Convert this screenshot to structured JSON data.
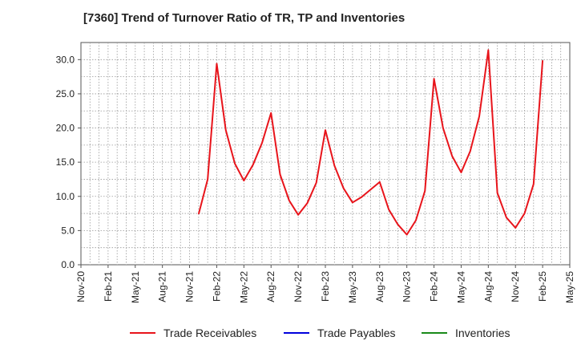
{
  "chart_data": {
    "type": "line",
    "title": "[7360]  Trend of Turnover Ratio of TR, TP and Inventories",
    "x_tick_labels": [
      "Nov-20",
      "Feb-21",
      "May-21",
      "Aug-21",
      "Nov-21",
      "Feb-22",
      "May-22",
      "Aug-22",
      "Nov-22",
      "Feb-23",
      "May-23",
      "Aug-23",
      "Nov-23",
      "Feb-24",
      "May-24",
      "Aug-24",
      "Nov-24",
      "Feb-25",
      "May-25"
    ],
    "y_tick_labels": [
      "0.0",
      "5.0",
      "10.0",
      "15.0",
      "20.0",
      "25.0",
      "30.0"
    ],
    "ylim": [
      0,
      32.5
    ],
    "grid": true,
    "legend_position": "bottom",
    "series": [
      {
        "name": "Trade Receivables",
        "color": "#e8141b",
        "values": [
          [
            "2021-12",
            7.4
          ],
          [
            "2022-01",
            12.5
          ],
          [
            "2022-02",
            29.4
          ],
          [
            "2022-03",
            19.7
          ],
          [
            "2022-04",
            14.8
          ],
          [
            "2022-05",
            12.3
          ],
          [
            "2022-06",
            14.6
          ],
          [
            "2022-07",
            17.8
          ],
          [
            "2022-08",
            22.2
          ],
          [
            "2022-09",
            13.2
          ],
          [
            "2022-10",
            9.4
          ],
          [
            "2022-11",
            7.3
          ],
          [
            "2022-12",
            9.0
          ],
          [
            "2023-01",
            12.0
          ],
          [
            "2023-02",
            19.7
          ],
          [
            "2023-03",
            14.5
          ],
          [
            "2023-04",
            11.2
          ],
          [
            "2023-05",
            9.1
          ],
          [
            "2023-06",
            9.9
          ],
          [
            "2023-07",
            11.0
          ],
          [
            "2023-08",
            12.1
          ],
          [
            "2023-09",
            8.1
          ],
          [
            "2023-10",
            5.9
          ],
          [
            "2023-11",
            4.4
          ],
          [
            "2023-12",
            6.5
          ],
          [
            "2024-01",
            10.8
          ],
          [
            "2024-02",
            27.2
          ],
          [
            "2024-03",
            20.0
          ],
          [
            "2024-04",
            15.9
          ],
          [
            "2024-05",
            13.5
          ],
          [
            "2024-06",
            16.6
          ],
          [
            "2024-07",
            21.7
          ],
          [
            "2024-08",
            31.4
          ],
          [
            "2024-09",
            10.5
          ],
          [
            "2024-10",
            6.9
          ],
          [
            "2024-11",
            5.4
          ],
          [
            "2024-12",
            7.5
          ],
          [
            "2025-01",
            11.8
          ],
          [
            "2025-02",
            29.9
          ]
        ]
      },
      {
        "name": "Trade Payables",
        "color": "#0000dd",
        "values": []
      },
      {
        "name": "Inventories",
        "color": "#1a8a1a",
        "values": []
      }
    ]
  }
}
